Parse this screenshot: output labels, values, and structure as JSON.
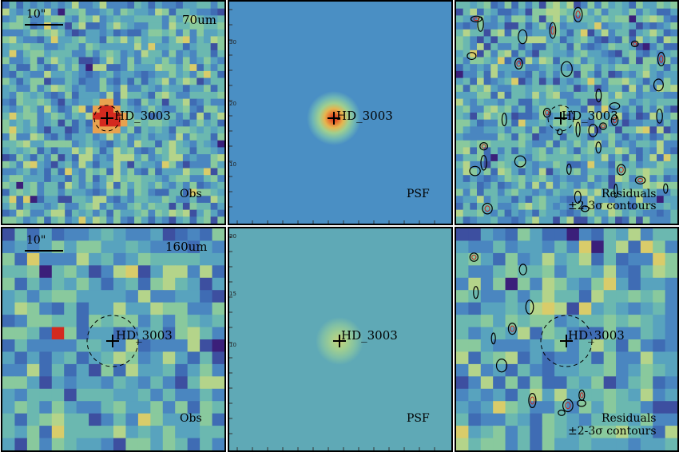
{
  "target": "HD_3003",
  "scale_label": "10\"",
  "rows": [
    {
      "band": "70um",
      "panels": [
        {
          "kind": "Obs"
        },
        {
          "kind": "PSF"
        },
        {
          "kind": "Residuals",
          "kind2": "±2-3σ contours"
        }
      ]
    },
    {
      "band": "160um",
      "panels": [
        {
          "kind": "Obs"
        },
        {
          "kind": "PSF"
        },
        {
          "kind": "Residuals",
          "kind2": "±2-3σ contours"
        }
      ]
    }
  ],
  "psf_ticks": {
    "top": [
      "30",
      "20",
      "10"
    ],
    "bottom": [
      "20",
      "15",
      "10"
    ]
  },
  "colors": {
    "obs_palette": [
      "#3b1f7a",
      "#3d4fa0",
      "#3f6cb4",
      "#4a86c0",
      "#58a3be",
      "#6bb8b0",
      "#89c99d",
      "#b4d48a",
      "#d9cc6a",
      "#e8a24f",
      "#e05c35",
      "#d42a1f"
    ],
    "psf_bg_top": "#4a8fc4",
    "psf_bg_bottom": "#5fa9b6",
    "contour": "#000000"
  }
}
